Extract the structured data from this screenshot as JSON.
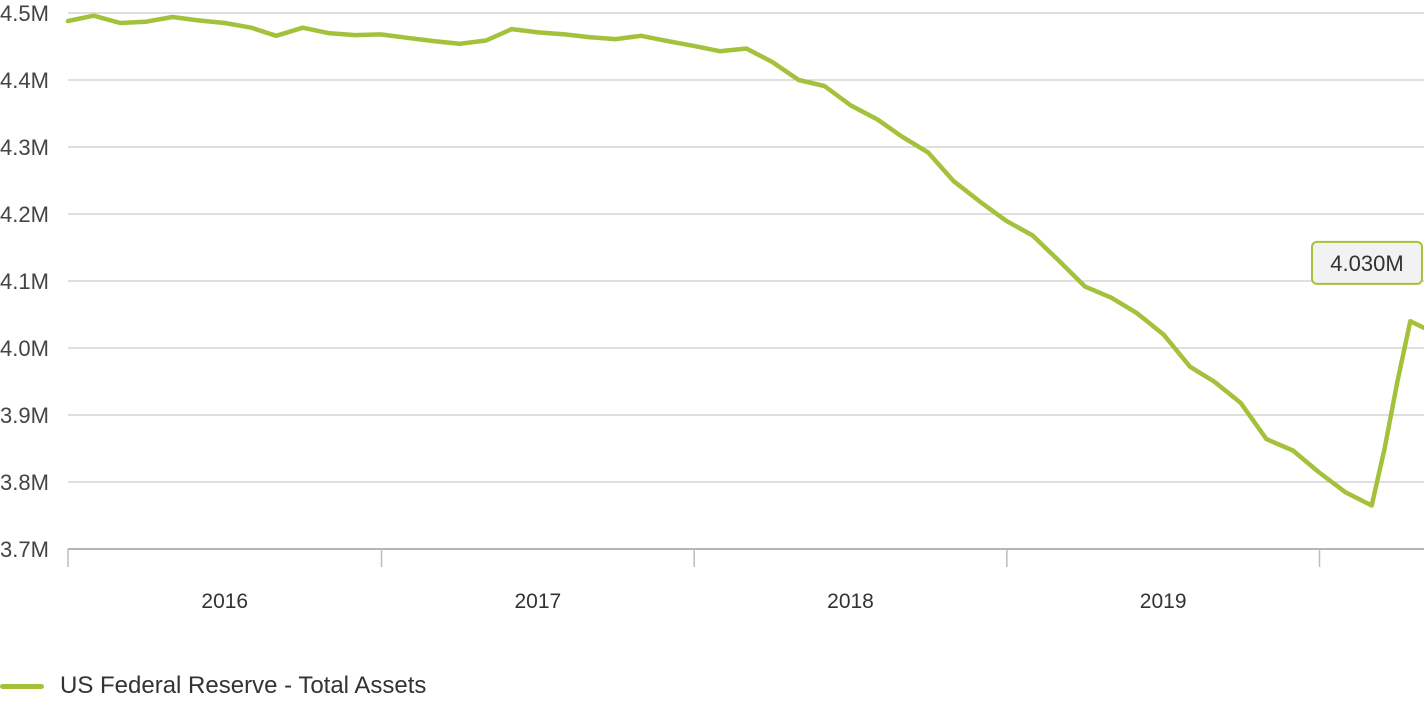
{
  "chart_data": {
    "type": "line",
    "title": "",
    "xlabel": "",
    "ylabel": "",
    "x_tick_labels": [
      "2016",
      "2017",
      "2018",
      "2019"
    ],
    "y_tick_labels": [
      "3.7M",
      "3.8M",
      "3.9M",
      "4.0M",
      "4.1M",
      "4.2M",
      "4.3M",
      "4.4M",
      "4.5M"
    ],
    "y_ticks": [
      3.7,
      3.8,
      3.9,
      4.0,
      4.1,
      4.2,
      4.3,
      4.4,
      4.5
    ],
    "ylim": [
      3.7,
      4.5
    ],
    "xlim": [
      "2015-07-01",
      "2019-10-31"
    ],
    "grid": true,
    "legend_position": "bottom-left",
    "series": [
      {
        "name": "US Federal Reserve - Total Assets",
        "color": "#a4c13c",
        "x": [
          "2015-07-01",
          "2015-07-31",
          "2015-08-31",
          "2015-09-30",
          "2015-10-31",
          "2015-11-30",
          "2015-12-31",
          "2016-01-31",
          "2016-02-29",
          "2016-03-31",
          "2016-04-30",
          "2016-05-31",
          "2016-06-30",
          "2016-07-31",
          "2016-08-31",
          "2016-09-30",
          "2016-10-31",
          "2016-11-30",
          "2016-12-31",
          "2017-01-31",
          "2017-02-28",
          "2017-03-31",
          "2017-04-30",
          "2017-05-31",
          "2017-06-30",
          "2017-07-31",
          "2017-08-31",
          "2017-09-30",
          "2017-10-31",
          "2017-11-30",
          "2017-12-31",
          "2018-01-31",
          "2018-02-28",
          "2018-03-31",
          "2018-04-30",
          "2018-05-31",
          "2018-06-30",
          "2018-07-31",
          "2018-08-31",
          "2018-09-30",
          "2018-10-31",
          "2018-11-30",
          "2018-12-31",
          "2019-01-31",
          "2019-02-28",
          "2019-03-31",
          "2019-04-30",
          "2019-05-31",
          "2019-06-30",
          "2019-07-31",
          "2019-08-31",
          "2019-09-15",
          "2019-09-30",
          "2019-10-15",
          "2019-10-31"
        ],
        "values": [
          4.488,
          4.496,
          4.485,
          4.487,
          4.494,
          4.489,
          4.485,
          4.478,
          4.466,
          4.478,
          4.47,
          4.467,
          4.468,
          4.463,
          4.458,
          4.454,
          4.459,
          4.476,
          4.471,
          4.468,
          4.464,
          4.461,
          4.466,
          4.458,
          4.451,
          4.443,
          4.447,
          4.427,
          4.4,
          4.391,
          4.362,
          4.341,
          4.316,
          4.292,
          4.249,
          4.218,
          4.19,
          4.168,
          4.13,
          4.092,
          4.075,
          4.052,
          4.02,
          3.972,
          3.95,
          3.918,
          3.864,
          3.847,
          3.815,
          3.785,
          3.765,
          3.85,
          3.95,
          4.04,
          4.03
        ]
      }
    ],
    "annotations": [
      {
        "label": "4.030M",
        "x": "2019-10-31",
        "y": 4.03
      }
    ]
  },
  "legend": {
    "label": "US Federal Reserve - Total Assets",
    "color": "#a4c13c"
  }
}
